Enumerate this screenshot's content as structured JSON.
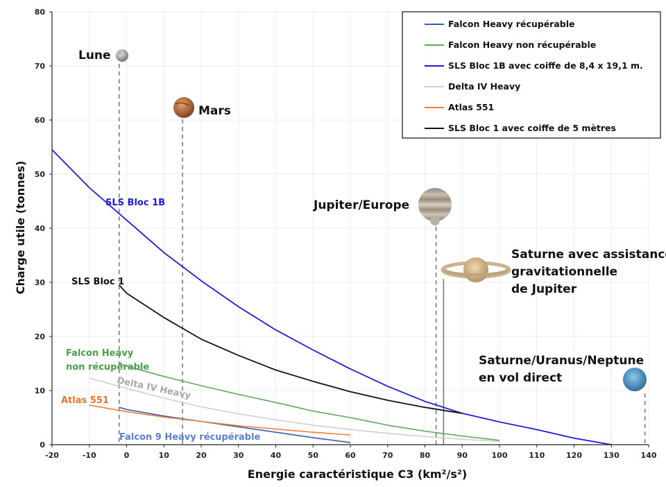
{
  "chart_data": {
    "type": "line",
    "xlabel": "Energie caractéristique C3 (km²/s²)",
    "ylabel": "Charge utile (tonnes)",
    "xlim": [
      -20,
      140
    ],
    "ylim": [
      0,
      80
    ],
    "xticks": [
      -20,
      -10,
      0,
      10,
      20,
      30,
      40,
      50,
      60,
      70,
      80,
      90,
      100,
      110,
      120,
      130,
      140
    ],
    "yticks": [
      0,
      10,
      20,
      30,
      40,
      50,
      60,
      70,
      80
    ],
    "grid": true,
    "legend_position": "top-right",
    "series": [
      {
        "name": "Falcon Heavy récupérable",
        "color": "#3a5ca8",
        "x": [
          -2,
          0,
          10,
          20,
          30,
          40,
          50,
          60
        ],
        "y": [
          6.9,
          6.5,
          5.3,
          4.3,
          3.3,
          2.3,
          1.3,
          0.4
        ]
      },
      {
        "name": "Falcon Heavy non récupérable",
        "color": "#5fa85a",
        "x": [
          -2,
          0,
          10,
          20,
          30,
          40,
          50,
          60,
          70,
          80,
          90,
          100
        ],
        "y": [
          15.0,
          14.5,
          12.6,
          10.9,
          9.3,
          7.8,
          6.2,
          5.0,
          3.6,
          2.5,
          1.6,
          0.8
        ]
      },
      {
        "name": "SLS Bloc 1B avec coiffe de 8,4 x 19,1 m.",
        "color": "#1c1cd8",
        "x": [
          -20,
          -10,
          0,
          10,
          20,
          30,
          40,
          50,
          60,
          70,
          80,
          90,
          100,
          110,
          120,
          130
        ],
        "y": [
          54.5,
          47.5,
          41.5,
          35.5,
          30.3,
          25.5,
          21.2,
          17.5,
          14.0,
          10.8,
          8.0,
          5.8,
          4.2,
          2.8,
          1.2,
          0.0
        ]
      },
      {
        "name": "Delta IV Heavy",
        "color": "#cfcfcf",
        "x": [
          -10,
          0,
          10,
          20,
          30,
          40,
          50,
          60,
          70,
          80,
          90,
          100
        ],
        "y": [
          12.3,
          10.4,
          8.6,
          7.0,
          5.7,
          4.6,
          3.6,
          2.8,
          2.1,
          1.5,
          1.0,
          0.6
        ]
      },
      {
        "name": "Atlas 551",
        "color": "#f07f3a",
        "x": [
          -10,
          0,
          10,
          20,
          30,
          40,
          50,
          60
        ],
        "y": [
          7.3,
          6.1,
          5.1,
          4.3,
          3.5,
          2.9,
          2.3,
          1.8
        ]
      },
      {
        "name": "SLS Bloc 1 avec coiffe de 5 mètres",
        "color": "#111111",
        "x": [
          -2,
          0,
          10,
          20,
          30,
          40,
          50,
          60,
          70,
          80,
          90
        ],
        "y": [
          29.5,
          28.0,
          23.5,
          19.5,
          16.5,
          13.8,
          11.7,
          9.8,
          8.2,
          6.9,
          5.8
        ]
      }
    ],
    "annotations": [
      {
        "text": "SLS Bloc 1B",
        "color": "#1c1cd8"
      },
      {
        "text": "SLS Bloc 1",
        "color": "#111111"
      },
      {
        "text": "Falcon Heavy",
        "color": "#4aa04a"
      },
      {
        "text": "non récupérable",
        "color": "#4aa04a"
      },
      {
        "text": "Delta IV Heavy",
        "color": "#a8a8a8"
      },
      {
        "text": "Atlas 551",
        "color": "#e8742c"
      },
      {
        "text": "Falcon 9 Heavy récupérable",
        "color": "#5b7fd6"
      }
    ],
    "targets": [
      {
        "label": "Lune",
        "x": -2,
        "body": "moon"
      },
      {
        "label": "Mars",
        "x": 15,
        "body": "mars"
      },
      {
        "label": "Jupiter/Europe",
        "x": 83,
        "body": "jupiter"
      },
      {
        "label": "Saturne avec assistance",
        "x": 85,
        "body": "saturn"
      },
      {
        "label": "gravitationnelle",
        "x": 85,
        "body": ""
      },
      {
        "label": "de Jupiter",
        "x": 85,
        "body": ""
      },
      {
        "label": "Saturne/Uranus/Neptune",
        "x": 139,
        "body": "neptune"
      },
      {
        "label": "en vol direct",
        "x": 139,
        "body": ""
      }
    ]
  }
}
